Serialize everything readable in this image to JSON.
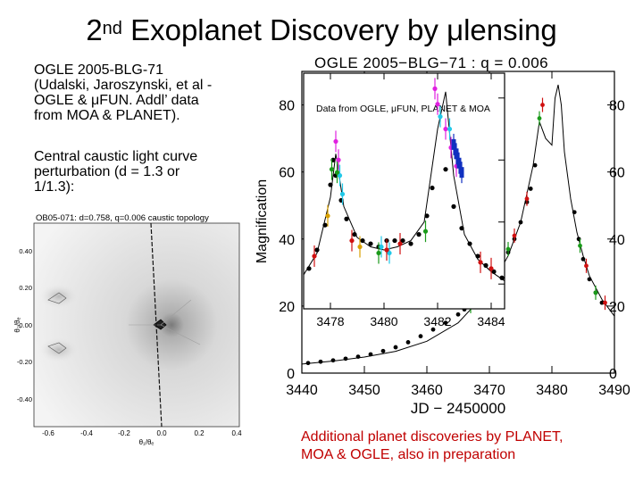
{
  "title": {
    "main_pre": "2",
    "main_sup": "nd",
    "main_post": " Exoplanet Discovery by μlensing"
  },
  "left_text": {
    "para1": [
      "OGLE 2005-BLG-71",
      "(Udalski, Jaroszynski, et al -",
      "OGLE & μFUN. Addl’ data",
      "from MOA & PLANET)."
    ],
    "para2": [
      "Central caustic light curve",
      "perturbation (d = 1.3 or",
      "1/1.3):"
    ]
  },
  "bottom_text": [
    "Additional planet discoveries by PLANET,",
    "MOA & OGLE, also in preparation"
  ],
  "caustic_plot": {
    "title": "OB05-071: d=0.758, q=0.006 caustic topology",
    "ylabel": "θ₂/θₑ",
    "xlabel": "θ₁/θₑ",
    "xticks": [
      "-0.6",
      "-0.4",
      "-0.2",
      "0.0",
      "0.2",
      "0.4"
    ],
    "yticks": [
      "0.40",
      "0.20",
      "0.00",
      "-0.20",
      "-0.40"
    ]
  },
  "chart_data": [
    {
      "type": "scatter",
      "title": "OGLE 2005−BLG−71 : q = 0.006",
      "xlabel": "JD − 2450000",
      "ylabel": "Magnification",
      "xlim": [
        3440,
        3490
      ],
      "ylim": [
        0,
        90
      ],
      "xticks": [
        "3440",
        "3450",
        "3460",
        "3470",
        "3480",
        "3490"
      ],
      "yticks": [
        "0",
        "20",
        "40",
        "60",
        "80"
      ],
      "series": [
        {
          "color": "#000000",
          "x": [
            3441,
            3443,
            3445,
            3447,
            3449,
            3451,
            3453,
            3455,
            3457,
            3459,
            3461,
            3463,
            3465,
            3466,
            3468,
            3470,
            3472,
            3473,
            3474,
            3475,
            3476,
            3476.6,
            3477.3,
            3483.6,
            3484.3,
            3485,
            3486,
            3487,
            3488
          ],
          "y": [
            3,
            3.4,
            3.8,
            4.3,
            4.9,
            5.6,
            6.6,
            7.7,
            9.2,
            11,
            13,
            15,
            17.5,
            19,
            23,
            27.5,
            33,
            36,
            40,
            45,
            51,
            55,
            62,
            48,
            40,
            34,
            28,
            24,
            21
          ]
        },
        {
          "color": "#1a9a1a",
          "x": [
            3467,
            3470,
            3473,
            3478,
            3484.5,
            3487
          ],
          "y": [
            20,
            27,
            37,
            76,
            38,
            24
          ]
        },
        {
          "color": "#d01010",
          "x": [
            3471,
            3474,
            3476,
            3478.5,
            3485.5,
            3488.5
          ],
          "y": [
            30,
            41,
            52,
            80,
            32,
            21
          ]
        }
      ],
      "curve": {
        "x": [
          3440,
          3445,
          3450,
          3455,
          3460,
          3465,
          3470,
          3473,
          3475,
          3477,
          3478,
          3479,
          3480,
          3480.5,
          3481,
          3481.5,
          3482,
          3483,
          3484,
          3485,
          3486,
          3488,
          3490
        ],
        "y": [
          2.7,
          3.6,
          4.8,
          6.5,
          9.5,
          15,
          25,
          35,
          45,
          62,
          75,
          70,
          68,
          82,
          86,
          80,
          66,
          52,
          42,
          35,
          29,
          22,
          17
        ]
      }
    },
    {
      "type": "scatter",
      "title": "inset",
      "annotation": "Data from OGLE, μFUN, PLANET & MOA",
      "xlim": [
        3477,
        3484.5
      ],
      "ylim": [
        12,
        88
      ],
      "xticks": [
        "3478",
        "3480",
        "3482",
        "3484"
      ],
      "yticks": [
        "20",
        "40",
        "60",
        "80"
      ],
      "series": [
        {
          "color": "#000000",
          "x": [
            3477.2,
            3477.5,
            3477.8,
            3478.0,
            3478.1,
            3478.2,
            3478.4,
            3478.6,
            3478.9,
            3479.2,
            3479.5,
            3479.8,
            3480.1,
            3480.4,
            3480.7,
            3481.0,
            3481.3,
            3481.6,
            3481.8,
            3482.3,
            3482.6,
            3482.9,
            3483.2,
            3483.5,
            3483.8,
            3484.1,
            3484.4
          ],
          "y": [
            25,
            31,
            39,
            52,
            60,
            55,
            47,
            41,
            36,
            34,
            33,
            32,
            34,
            34,
            34,
            33,
            36,
            42,
            51,
            57,
            45,
            38,
            33,
            29,
            26,
            24,
            22
          ]
        },
        {
          "color": "#e020e0",
          "x": [
            3478.2,
            3478.3,
            3481.9,
            3482.0,
            3482.3,
            3482.5,
            3482.7
          ],
          "y": [
            66,
            60,
            83,
            78,
            70,
            64,
            58
          ]
        },
        {
          "color": "#20c8e8",
          "x": [
            3478.35,
            3478.45,
            3479.9,
            3480.2,
            3482.1,
            3482.45
          ],
          "y": [
            55,
            49,
            32,
            30,
            74,
            70
          ]
        },
        {
          "color": "#1030c0",
          "x": [
            3482.6,
            3482.7,
            3482.8,
            3482.9
          ],
          "y": [
            65,
            62,
            59,
            56
          ]
        },
        {
          "color": "#1a9a1a",
          "x": [
            3478.05,
            3478.25,
            3479.8,
            3481.55
          ],
          "y": [
            57,
            56,
            30,
            37
          ]
        },
        {
          "color": "#d01010",
          "x": [
            3477.4,
            3478.8,
            3480.1,
            3480.6,
            3483.6,
            3484.0
          ],
          "y": [
            29,
            34,
            31,
            33,
            27,
            25
          ]
        },
        {
          "color": "#d8a000",
          "x": [
            3477.9,
            3479.1
          ],
          "y": [
            42,
            32
          ]
        }
      ],
      "curve": {
        "x": [
          3477,
          3477.5,
          3478,
          3478.2,
          3478.5,
          3479,
          3479.5,
          3480,
          3480.5,
          3481,
          3481.5,
          3482,
          3482.3,
          3482.6,
          3483,
          3483.5,
          3484,
          3484.5
        ],
        "y": [
          23,
          30,
          48,
          62,
          45,
          35,
          32,
          31,
          32,
          34,
          40,
          70,
          82,
          55,
          36,
          28,
          24,
          21
        ]
      }
    }
  ]
}
